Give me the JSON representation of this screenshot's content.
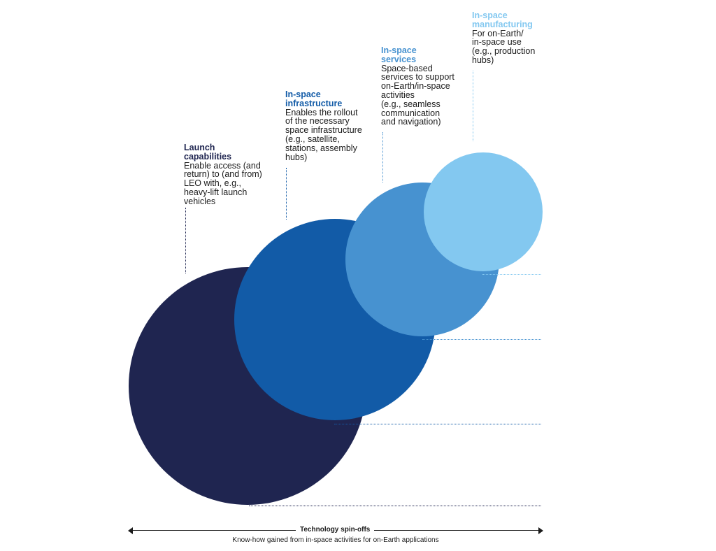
{
  "colors": {
    "launch": "#1f2550",
    "infrastructure": "#125ba7",
    "services": "#4792d0",
    "manufacturing": "#83c8f0",
    "text": "#1b1b1b"
  },
  "stages": [
    {
      "id": "launch",
      "title": "Launch\ncapabilities",
      "description": "Enable access (and\nreturn) to (and from)\nLEO with, e.g.,\nheavy-lift launch\nvehicles"
    },
    {
      "id": "infrastructure",
      "title": "In-space\ninfrastructure",
      "description": "Enables the rollout\nof the necessary\nspace infrastructure\n(e.g., satellite,\nstations, assembly\nhubs)"
    },
    {
      "id": "services",
      "title": "In-space\nservices",
      "description": "Space-based\nservices to support\non-Earth/in-space\nactivities\n(e.g., seamless\ncommunication\nand navigation)"
    },
    {
      "id": "manufacturing",
      "title": "In-space\nmanufacturing",
      "description": "For on-Earth/\nin-space use\n(e.g., production\nhubs)"
    }
  ],
  "axis": {
    "title": "Technology spin-offs",
    "subtitle": "Know-how gained from in-space activities for on-Earth applications"
  }
}
